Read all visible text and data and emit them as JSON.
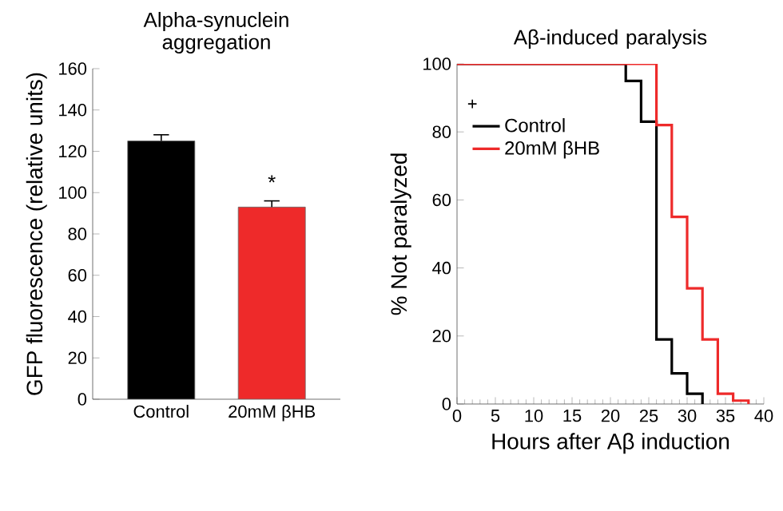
{
  "chart_data": [
    {
      "type": "bar",
      "title": "Alpha-synuclein aggregation",
      "ylabel": "GFP fluorescence (relative units)",
      "categories": [
        "Control",
        "20mM βHB"
      ],
      "values": [
        125,
        93
      ],
      "colors": [
        "#000000",
        "#ee2a2a"
      ],
      "errors": [
        [
          125,
          128
        ],
        [
          93,
          96
        ]
      ],
      "ylim": [
        0,
        160
      ],
      "yticks": [
        0,
        20,
        40,
        60,
        80,
        100,
        120,
        140,
        160
      ],
      "annotations": [
        "*"
      ],
      "grid": false,
      "legend": false
    },
    {
      "type": "step",
      "title": "Aβ-induced paralysis",
      "xlabel": "Hours after Aβ induction",
      "ylabel": "% Not paralyzed",
      "series": [
        {
          "name": "Control",
          "color": "#000000",
          "x": [
            0,
            22,
            24,
            26,
            28,
            30,
            32
          ],
          "values": [
            100,
            95,
            83,
            19,
            9,
            3,
            0
          ]
        },
        {
          "name": "20mM βHB",
          "color": "#ee2a2a",
          "x": [
            0,
            26,
            28,
            30,
            32,
            34,
            36,
            38
          ],
          "values": [
            100,
            82,
            55,
            34,
            19,
            3,
            1,
            0
          ]
        }
      ],
      "xlim": [
        0,
        40
      ],
      "xticks": [
        0,
        5,
        10,
        15,
        20,
        25,
        30,
        35,
        40
      ],
      "ylim": [
        0,
        100
      ],
      "yticks": [
        0,
        20,
        40,
        60,
        80,
        100
      ],
      "annotations": [
        "+"
      ],
      "legend": "top left",
      "grid": false
    }
  ]
}
